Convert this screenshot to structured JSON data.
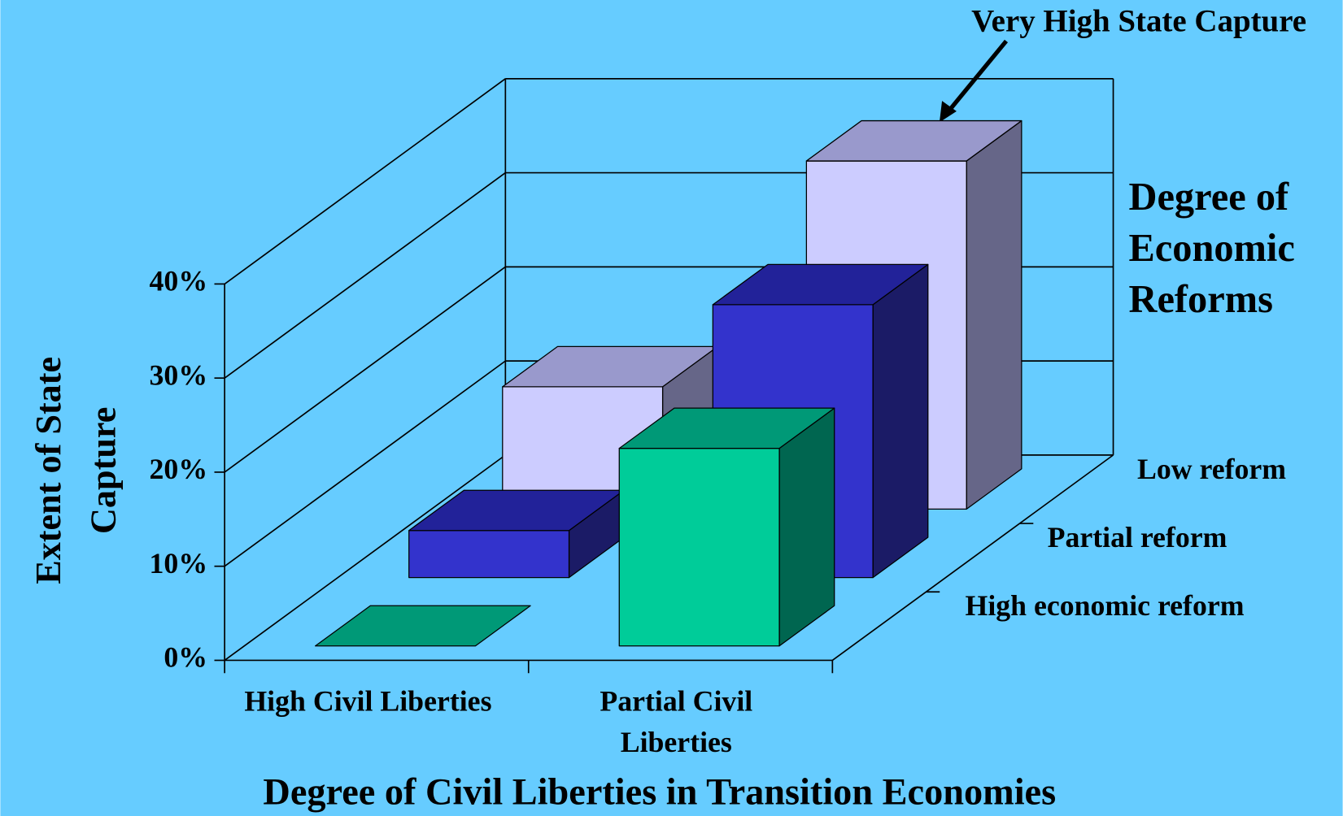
{
  "chart_data": {
    "type": "bar3d",
    "annotation": "Very High State Capture",
    "x_label": "Degree of Civil Liberties in Transition Economies",
    "y_label": "Extent of State Capture",
    "z_label": "Degree of Economic Reforms",
    "categories": [
      "High Civil Liberties",
      "Partial Civil Liberties"
    ],
    "series": [
      {
        "name": "High economic reform",
        "color": "#00cc99",
        "top": "#009977",
        "side": "#006650",
        "values": [
          0,
          21
        ]
      },
      {
        "name": "Partial reform",
        "color": "#3333cc",
        "top": "#222299",
        "side": "#1b1b66",
        "values": [
          5,
          29
        ]
      },
      {
        "name": "Low reform",
        "color": "#ccccff",
        "top": "#9999cc",
        "side": "#666688",
        "values": [
          13,
          37
        ]
      }
    ],
    "ylim": [
      0,
      40
    ],
    "yticks": [
      {
        "value": 0,
        "label": "0%"
      },
      {
        "value": 10,
        "label": "10%"
      },
      {
        "value": 20,
        "label": "20%"
      },
      {
        "value": 30,
        "label": "30%"
      },
      {
        "value": 40,
        "label": "40%"
      }
    ],
    "grid": true,
    "background": "#66ccff"
  }
}
